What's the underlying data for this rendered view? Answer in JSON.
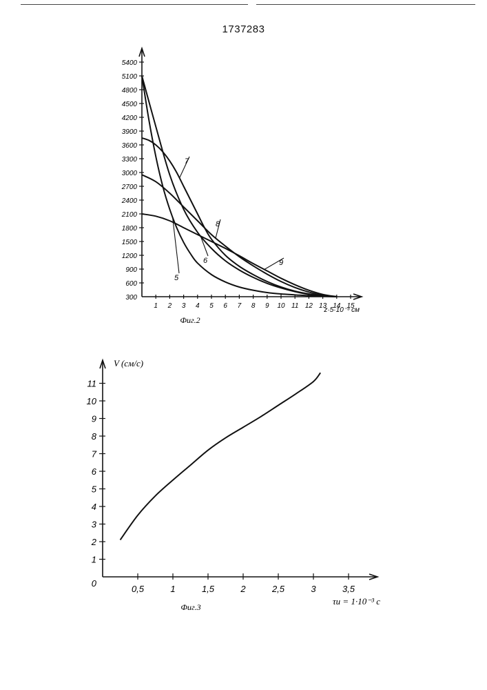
{
  "page": {
    "number": "1737283"
  },
  "chart_data": [
    {
      "type": "line",
      "caption": "Фиг.2",
      "xlabel": "z·5·10⁻³ см",
      "x_ticks": [
        "1",
        "2",
        "3",
        "4",
        "5",
        "6",
        "7",
        "8",
        "9",
        "10",
        "11",
        "12",
        "13",
        "14",
        "15"
      ],
      "y_ticks": [
        "300",
        "600",
        "900",
        "1200",
        "1500",
        "1800",
        "2100",
        "2400",
        "2700",
        "3000",
        "3300",
        "3600",
        "3900",
        "4200",
        "4500",
        "4800",
        "5100",
        "5400"
      ],
      "xlim": [
        0,
        15.5
      ],
      "ylim": [
        300,
        5400
      ],
      "series": [
        {
          "name": "5",
          "x": [
            0,
            0.5,
            1,
            1.5,
            2,
            2.5,
            3,
            3.5,
            4,
            5,
            6,
            7,
            8,
            9,
            10,
            11,
            12,
            13,
            14
          ],
          "y": [
            5100,
            4150,
            3350,
            2700,
            2200,
            1800,
            1480,
            1230,
            1030,
            780,
            620,
            510,
            440,
            390,
            360,
            340,
            320,
            310,
            300
          ]
        },
        {
          "name": "6",
          "x": [
            0,
            1,
            2,
            3,
            4,
            5,
            6,
            7,
            8,
            9,
            10,
            11,
            12,
            13,
            14
          ],
          "y": [
            5100,
            4000,
            2950,
            2200,
            1700,
            1350,
            1080,
            880,
            720,
            590,
            490,
            410,
            350,
            320,
            300
          ]
        },
        {
          "name": "7",
          "x": [
            0,
            0.5,
            1,
            1.5,
            2,
            2.5,
            3,
            3.5,
            4,
            4.5,
            5,
            6,
            7,
            8,
            9,
            10,
            11,
            12,
            13,
            14
          ],
          "y": [
            3750,
            3700,
            3600,
            3450,
            3250,
            3000,
            2700,
            2400,
            2100,
            1800,
            1550,
            1200,
            960,
            780,
            630,
            510,
            420,
            360,
            320,
            300
          ]
        },
        {
          "name": "8",
          "x": [
            0,
            1,
            2,
            3,
            4,
            5,
            6,
            7,
            8,
            9,
            10,
            11,
            12,
            13,
            14
          ],
          "y": [
            2950,
            2800,
            2550,
            2250,
            1950,
            1650,
            1400,
            1170,
            970,
            790,
            630,
            500,
            400,
            330,
            300
          ]
        },
        {
          "name": "9",
          "x": [
            0,
            1,
            2,
            3,
            4,
            5,
            6,
            7,
            8,
            9,
            10,
            11,
            12,
            13,
            14
          ],
          "y": [
            2100,
            2050,
            1950,
            1800,
            1650,
            1500,
            1350,
            1190,
            1020,
            860,
            700,
            560,
            440,
            350,
            300
          ]
        }
      ]
    },
    {
      "type": "line",
      "caption": "Фиг.3",
      "ylabel": "V (см/с)",
      "xlabel": "τи = 1·10⁻³ с",
      "x_ticks": [
        "0,5",
        "1",
        "1,5",
        "2",
        "2,5",
        "3",
        "3,5"
      ],
      "y_ticks": [
        "0",
        "1",
        "2",
        "3",
        "4",
        "5",
        "6",
        "7",
        "8",
        "9",
        "10",
        "11"
      ],
      "xlim": [
        0,
        3.6
      ],
      "ylim": [
        0,
        11.5
      ],
      "series": [
        {
          "name": "",
          "x": [
            0.25,
            0.5,
            0.75,
            1,
            1.25,
            1.5,
            1.75,
            2,
            2.25,
            2.5,
            2.75,
            3,
            3.1
          ],
          "y": [
            2.1,
            3.5,
            4.6,
            5.5,
            6.35,
            7.2,
            7.9,
            8.5,
            9.1,
            9.75,
            10.4,
            11.1,
            11.6
          ]
        }
      ]
    }
  ]
}
